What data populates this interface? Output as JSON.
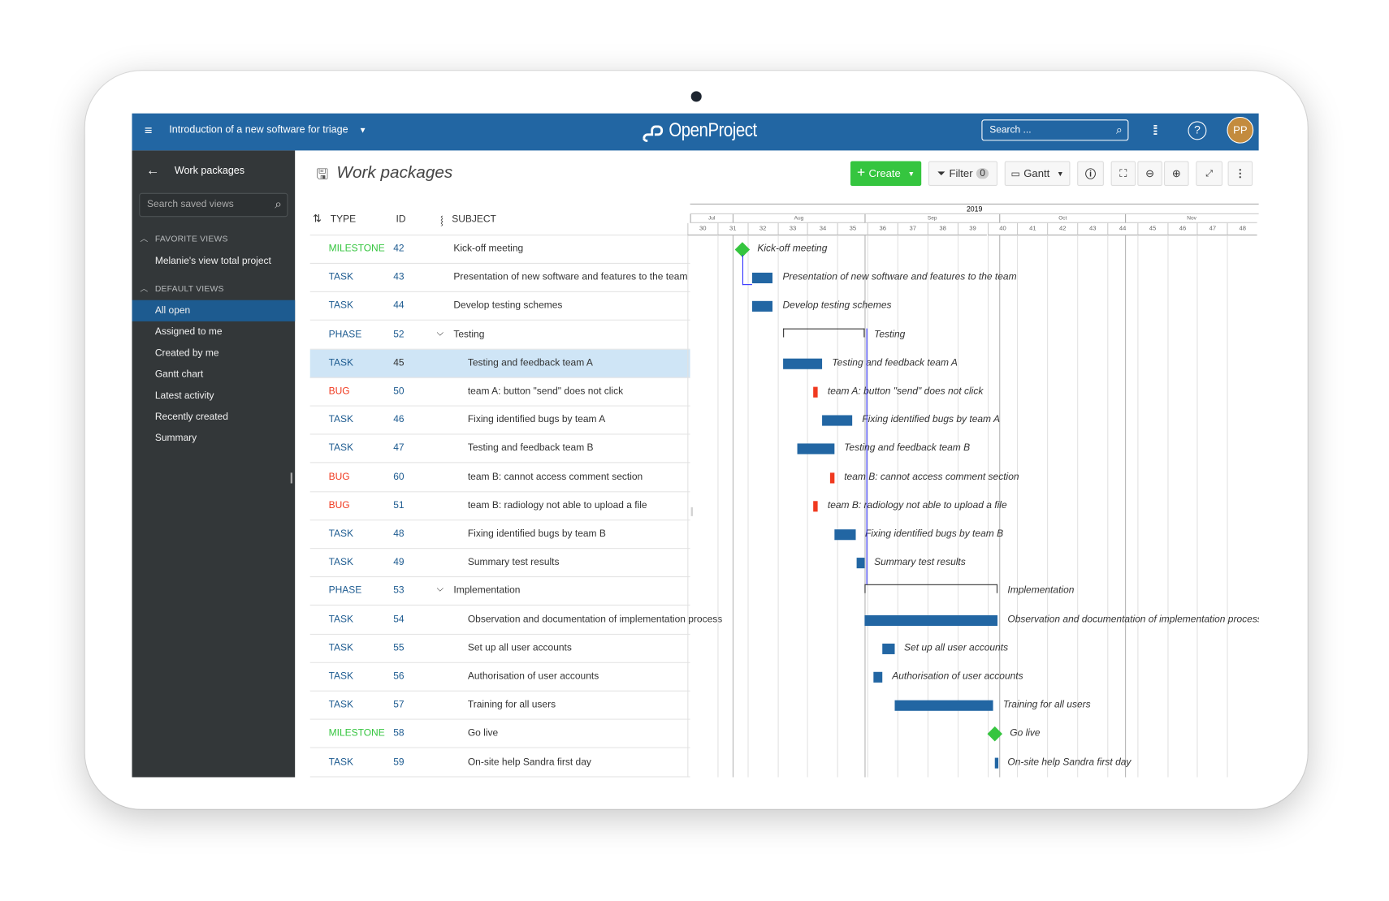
{
  "header": {
    "project": "Introduction of a new software for triage",
    "logo": "OpenProject",
    "search_placeholder": "Search ...",
    "avatar": "PP",
    "brand_color": "#2266a3"
  },
  "sidebar": {
    "back_label": "Work packages",
    "search_placeholder": "Search saved views",
    "favorite_heading": "FAVORITE VIEWS",
    "favorites": [
      "Melanie's view total project"
    ],
    "default_heading": "DEFAULT VIEWS",
    "defaults": [
      "All open",
      "Assigned to me",
      "Created by me",
      "Gantt chart",
      "Latest activity",
      "Recently created",
      "Summary"
    ],
    "active": "All open"
  },
  "main": {
    "title": "Work packages",
    "toolbar": {
      "create": "Create",
      "filter": "Filter",
      "filter_count": "0",
      "view": "Gantt"
    },
    "columns": {
      "type": "TYPE",
      "id": "ID",
      "subject": "SUBJECT"
    }
  },
  "type_colors": {
    "MILESTONE": "#35c53f",
    "TASK": "#1d5b90",
    "PHASE": "#1d5b90",
    "BUG": "#f0391f"
  },
  "rows": [
    {
      "type": "MILESTONE",
      "id": "42",
      "subject": "Kick-off meeting",
      "level": 0,
      "start": 31.83,
      "end": 31.83
    },
    {
      "type": "TASK",
      "id": "43",
      "subject": "Presentation of new software and features to the team",
      "level": 0,
      "start": 32.15,
      "end": 32.85
    },
    {
      "type": "TASK",
      "id": "44",
      "subject": "Develop testing schemes",
      "level": 0,
      "start": 32.15,
      "end": 32.85
    },
    {
      "type": "PHASE",
      "id": "52",
      "subject": "Testing",
      "level": 0,
      "group": true,
      "start": 33.2,
      "end": 35.9
    },
    {
      "type": "TASK",
      "id": "45",
      "subject": "Testing and feedback team A",
      "level": 1,
      "selected": true,
      "start": 33.2,
      "end": 34.5
    },
    {
      "type": "BUG",
      "id": "50",
      "subject": "team A: button \"send\" does not click",
      "level": 1,
      "start": 34.2,
      "end": 34.35
    },
    {
      "type": "TASK",
      "id": "46",
      "subject": "Fixing identified bugs by team A",
      "level": 1,
      "start": 34.5,
      "end": 35.5
    },
    {
      "type": "TASK",
      "id": "47",
      "subject": "Testing and feedback team B",
      "level": 1,
      "start": 33.65,
      "end": 34.9
    },
    {
      "type": "BUG",
      "id": "60",
      "subject": "team B: cannot access comment section",
      "level": 1,
      "start": 34.75,
      "end": 34.9
    },
    {
      "type": "BUG",
      "id": "51",
      "subject": "team B: radiology not able to upload a file",
      "level": 1,
      "start": 34.2,
      "end": 34.35
    },
    {
      "type": "TASK",
      "id": "48",
      "subject": "Fixing identified bugs by team B",
      "level": 1,
      "start": 34.9,
      "end": 35.6
    },
    {
      "type": "TASK",
      "id": "49",
      "subject": "Summary test results",
      "level": 1,
      "start": 35.65,
      "end": 35.9
    },
    {
      "type": "PHASE",
      "id": "53",
      "subject": "Implementation",
      "level": 0,
      "group": true,
      "start": 35.9,
      "end": 40.35
    },
    {
      "type": "TASK",
      "id": "54",
      "subject": "Observation and documentation of implementation process",
      "level": 1,
      "start": 35.9,
      "end": 40.35
    },
    {
      "type": "TASK",
      "id": "55",
      "subject": "Set up all user accounts",
      "level": 1,
      "start": 36.5,
      "end": 36.9
    },
    {
      "type": "TASK",
      "id": "56",
      "subject": "Authorisation of user accounts",
      "level": 1,
      "start": 36.2,
      "end": 36.5
    },
    {
      "type": "TASK",
      "id": "57",
      "subject": "Training for all users",
      "level": 1,
      "start": 36.9,
      "end": 40.2
    },
    {
      "type": "MILESTONE",
      "id": "58",
      "subject": "Go live",
      "level": 1,
      "start": 40.25,
      "end": 40.25
    },
    {
      "type": "TASK",
      "id": "59",
      "subject": "On-site help Sandra first day",
      "level": 1,
      "start": 40.25,
      "end": 40.35
    }
  ],
  "timeline": {
    "year": "2019",
    "months": [
      {
        "label": "Jul",
        "from": 30,
        "to": 31.5
      },
      {
        "label": "Aug",
        "from": 31.5,
        "to": 35.9
      },
      {
        "label": "Sep",
        "from": 35.9,
        "to": 40.4
      },
      {
        "label": "Oct",
        "from": 40.4,
        "to": 44.6
      },
      {
        "label": "Nov",
        "from": 44.6,
        "to": 49
      }
    ],
    "weeks": [
      "30",
      "31",
      "32",
      "33",
      "34",
      "35",
      "36",
      "37",
      "38",
      "39",
      "40",
      "41",
      "42",
      "43",
      "44",
      "45",
      "46",
      "47",
      "48"
    ]
  }
}
